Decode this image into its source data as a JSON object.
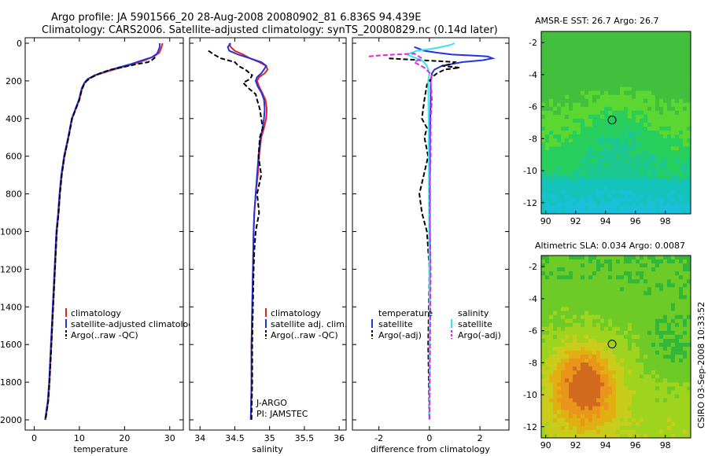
{
  "figure": {
    "title_line1": "Argo profile: JA 5901566_20 28-Aug-2008 20080902_81 6.836S 94.439E",
    "title_line2": "Climatology: CARS2006. Satellite-adjusted climatology: synTS_20080829.nc (0.14d later)",
    "side_label": "CSIRO 03-Sep-2008 10:33:52"
  },
  "colors": {
    "climatology": "#e8231e",
    "satellite": "#2433e0",
    "argo": "#000000",
    "salinity_satellite": "#3ee3e6",
    "salinity_argo": "#e626e6"
  },
  "chart_data": [
    {
      "type": "line",
      "id": "temperature",
      "xlabel": "temperature",
      "ylabel": "",
      "xlim": [
        -2,
        33
      ],
      "ylim": [
        2050,
        0
      ],
      "xticks": [
        0,
        10,
        20,
        30
      ],
      "yticks": [
        0,
        200,
        400,
        600,
        800,
        1000,
        1200,
        1400,
        1600,
        1800,
        2000
      ],
      "legend": [
        "climatology",
        "satellite-adjusted climatology",
        "Argo(..raw -QC)"
      ],
      "series": [
        {
          "name": "climatology",
          "color_key": "climatology",
          "dash": false,
          "x": [
            28.4,
            28.2,
            27.7,
            26.5,
            24.5,
            22,
            19,
            16.2,
            13.6,
            12,
            11.2,
            10.6,
            10,
            9.2,
            8.4,
            7.6,
            6.7,
            6.1,
            5.7,
            5.4,
            5,
            4.6,
            4.2,
            3.8,
            3.4,
            3.1,
            2.8,
            2.5
          ],
          "y": [
            0,
            20,
            50,
            70,
            90,
            110,
            130,
            150,
            170,
            190,
            210,
            240,
            300,
            350,
            400,
            500,
            600,
            700,
            800,
            900,
            1000,
            1200,
            1400,
            1600,
            1800,
            1900,
            1950,
            2000
          ]
        },
        {
          "name": "satellite-adjusted climatology",
          "color_key": "satellite",
          "dash": false,
          "x": [
            27.8,
            27.8,
            27.2,
            26,
            24,
            21.5,
            18.5,
            15.8,
            13.4,
            11.8,
            11.1,
            10.5,
            9.9,
            9.1,
            8.3,
            7.5,
            6.6,
            6,
            5.6,
            5.3,
            4.9,
            4.5,
            4.1,
            3.7,
            3.3,
            3,
            2.7,
            2.4
          ],
          "y": [
            0,
            20,
            55,
            75,
            90,
            110,
            130,
            150,
            170,
            190,
            210,
            240,
            300,
            350,
            400,
            500,
            600,
            700,
            800,
            900,
            1000,
            1200,
            1400,
            1600,
            1800,
            1900,
            1950,
            2000
          ]
        },
        {
          "name": "Argo(..raw -QC)",
          "color_key": "argo",
          "dash": true,
          "x": [
            26.8,
            26.5,
            26,
            25.2,
            23,
            20,
            17,
            14.5,
            12.8,
            11.6,
            11,
            10.5,
            10,
            9.2,
            8.4,
            7.6,
            6.7,
            6.1,
            5.7,
            5.4,
            5,
            4.6,
            4.2,
            3.8,
            3.4,
            3.1,
            2.8,
            2.5
          ],
          "y": [
            75,
            80,
            90,
            100,
            110,
            125,
            140,
            160,
            180,
            200,
            220,
            250,
            300,
            350,
            400,
            500,
            600,
            700,
            800,
            900,
            1000,
            1200,
            1400,
            1600,
            1800,
            1900,
            1950,
            2000
          ]
        }
      ]
    },
    {
      "type": "line",
      "id": "salinity",
      "xlabel": "salinity",
      "ylabel": "",
      "xlim": [
        33.85,
        36.1
      ],
      "ylim": [
        2050,
        0
      ],
      "xticks": [
        34,
        34.5,
        35,
        35.5,
        36
      ],
      "legend": [
        "climatology",
        "satellite adj. clim.",
        "Argo(..raw -QC)"
      ],
      "series": [
        {
          "name": "climatology",
          "color_key": "climatology",
          "dash": false,
          "x": [
            34.42,
            34.44,
            34.5,
            34.62,
            34.72,
            34.85,
            34.95,
            34.97,
            34.93,
            34.85,
            34.82,
            34.85,
            34.89,
            34.94,
            34.96,
            34.95,
            34.92,
            34.88,
            34.85,
            34.83,
            34.8,
            34.78,
            34.77,
            34.76,
            34.75,
            34.74,
            34.74,
            34.73
          ],
          "y": [
            0,
            20,
            40,
            60,
            80,
            100,
            120,
            140,
            160,
            180,
            200,
            230,
            260,
            300,
            350,
            400,
            450,
            500,
            600,
            700,
            800,
            900,
            1000,
            1200,
            1400,
            1600,
            1800,
            2000
          ]
        },
        {
          "name": "satellite adj. clim.",
          "color_key": "satellite",
          "dash": false,
          "x": [
            34.44,
            34.4,
            34.42,
            34.55,
            34.72,
            34.88,
            34.95,
            34.92,
            34.88,
            34.82,
            34.8,
            34.83,
            34.88,
            34.92,
            34.93,
            34.92,
            34.9,
            34.87,
            34.84,
            34.82,
            34.8,
            34.78,
            34.77,
            34.76,
            34.75,
            34.74,
            34.74,
            34.73
          ],
          "y": [
            0,
            20,
            40,
            60,
            80,
            100,
            120,
            140,
            160,
            180,
            200,
            230,
            260,
            300,
            350,
            400,
            450,
            500,
            600,
            700,
            800,
            900,
            1000,
            1200,
            1400,
            1600,
            1800,
            2000
          ]
        },
        {
          "name": "Argo(..raw -QC)",
          "color_key": "argo",
          "dash": true,
          "x": [
            34.12,
            34.2,
            34.3,
            34.4,
            34.5,
            34.55,
            34.65,
            34.75,
            34.72,
            34.62,
            34.7,
            34.8,
            34.82,
            34.86,
            34.88,
            34.9,
            34.86,
            34.84,
            34.88,
            34.82,
            34.85,
            34.8,
            34.78,
            34.77,
            34.76,
            34.75,
            34.75,
            34.74
          ],
          "y": [
            40,
            60,
            80,
            90,
            100,
            120,
            140,
            170,
            190,
            210,
            240,
            270,
            300,
            350,
            400,
            450,
            500,
            600,
            700,
            800,
            900,
            1000,
            1100,
            1200,
            1400,
            1600,
            1800,
            2000
          ]
        }
      ],
      "annotations": [
        "J-ARGO",
        "PI: JAMSTEC"
      ]
    },
    {
      "type": "line",
      "id": "difference",
      "xlabel": "difference from climatology",
      "ylabel": "",
      "xlim": [
        -3.05,
        3.15
      ],
      "ylim": [
        2050,
        0
      ],
      "xticks": [
        -2,
        0,
        2
      ],
      "legend_titles": [
        "temperature",
        "salinity"
      ],
      "legend": [
        "satellite",
        "Argo(-adj)",
        "satellite",
        "Argo(-adj)"
      ],
      "series": [
        {
          "name": "temperature satellite",
          "color_key": "satellite",
          "dash": false,
          "x": [
            -0.6,
            -0.4,
            -0.2,
            0.3,
            0.9,
            1.7,
            2.3,
            2.5,
            2.1,
            1.3,
            0.5,
            0.2,
            0.1,
            0.05,
            0.05,
            0.02,
            0.02,
            0.02,
            0,
            0
          ],
          "y": [
            20,
            30,
            40,
            50,
            60,
            65,
            70,
            80,
            90,
            100,
            120,
            140,
            160,
            200,
            300,
            500,
            800,
            1200,
            1600,
            2000
          ]
        },
        {
          "name": "temperature Argo(-adj)",
          "color_key": "argo",
          "dash": true,
          "x": [
            -1.6,
            -1,
            -0.3,
            0.4,
            1,
            0.9,
            0.5,
            1.2,
            0.6,
            0.3,
            0.1,
            -0.1,
            -0.2,
            -0.3,
            -0.1,
            -0.2,
            -0.05,
            -0.4,
            -0.3,
            -0.1,
            0,
            -0.05,
            0
          ],
          "y": [
            80,
            85,
            90,
            95,
            100,
            110,
            120,
            130,
            140,
            160,
            180,
            220,
            300,
            400,
            450,
            500,
            600,
            800,
            900,
            1000,
            1200,
            1600,
            2000
          ]
        },
        {
          "name": "salinity satellite",
          "color_key": "salinity_satellite",
          "dash": false,
          "x": [
            1,
            0.8,
            0.3,
            -0.5,
            -0.9,
            -0.6,
            -0.3,
            -0.1,
            0,
            -0.05,
            -0.03,
            -0.02,
            0,
            0
          ],
          "y": [
            0,
            10,
            25,
            40,
            60,
            75,
            90,
            120,
            160,
            200,
            400,
            800,
            1400,
            2000
          ]
        },
        {
          "name": "salinity Argo(-adj)",
          "color_key": "salinity_argo",
          "dash": true,
          "x": [
            -2.4,
            -2,
            -1.4,
            -0.6,
            -0.3,
            -0.6,
            -0.2,
            0.1,
            0.05,
            0.1,
            0.05,
            0.05,
            0.05,
            0,
            0.05,
            0
          ],
          "y": [
            70,
            65,
            60,
            55,
            80,
            100,
            130,
            170,
            200,
            300,
            400,
            500,
            600,
            800,
            1200,
            2000
          ]
        }
      ]
    },
    {
      "type": "heatmap",
      "id": "sst-map",
      "title": "AMSR-E SST: 26.7 Argo: 26.7",
      "xlim": [
        89.7,
        99.7
      ],
      "ylim": [
        -12.7,
        -1.3
      ],
      "xticks": [
        90,
        92,
        94,
        96,
        98
      ],
      "yticks": [
        -2,
        -4,
        -6,
        -8,
        -10,
        -12
      ],
      "marker": {
        "lon": 94.439,
        "lat": -6.836
      },
      "palette": [
        "#41bf3d",
        "#5cd630",
        "#26cf5c",
        "#1cc791",
        "#14c4bb",
        "#1abfd9",
        "#3399ff"
      ]
    },
    {
      "type": "heatmap",
      "id": "sla-map",
      "title": "Altimetric SLA: 0.034 Argo: 0.0087",
      "xlim": [
        89.7,
        99.7
      ],
      "ylim": [
        -12.7,
        -1.3
      ],
      "xticks": [
        90,
        92,
        94,
        96,
        98
      ],
      "yticks": [
        -2,
        -4,
        -6,
        -8,
        -10,
        -12
      ],
      "marker": {
        "lon": 94.439,
        "lat": -6.836
      },
      "palette": [
        "#31b83a",
        "#6ecb27",
        "#9fd41e",
        "#c9cc1a",
        "#e0b012",
        "#e8951a",
        "#d26a1e"
      ]
    }
  ]
}
